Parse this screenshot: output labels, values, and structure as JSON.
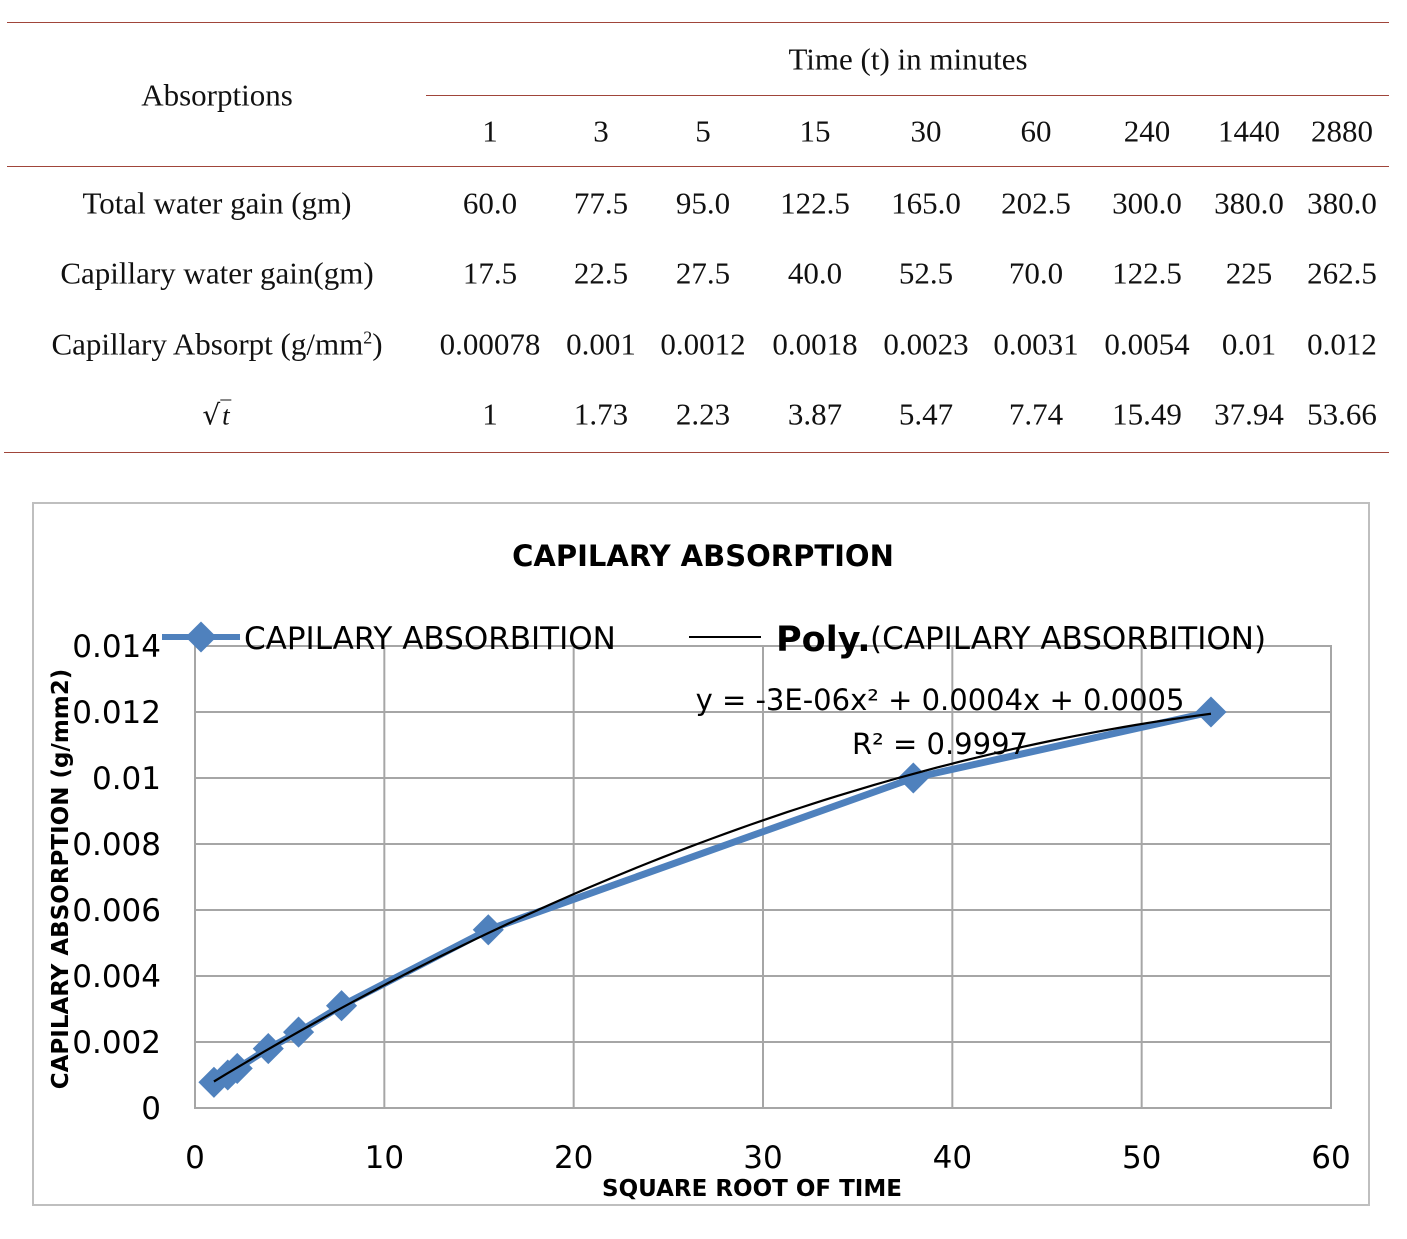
{
  "table": {
    "row_header_title": "Absorptions",
    "time_header": "Time (t) in minutes",
    "times": [
      "1",
      "3",
      "5",
      "15",
      "30",
      "60",
      "240",
      "1440",
      "2880"
    ],
    "rows": [
      {
        "label": "Total water gain (gm)",
        "values": [
          "60.0",
          "77.5",
          "95.0",
          "122.5",
          "165.0",
          "202.5",
          "300.0",
          "380.0",
          "380.0"
        ]
      },
      {
        "label": "Capillary water gain(gm)",
        "values": [
          "17.5",
          "22.5",
          "27.5",
          "40.0",
          "52.5",
          "70.0",
          "122.5",
          "225",
          "262.5"
        ]
      },
      {
        "label": "Capillary Absorpt (g/mm",
        "label_sup": "2",
        "label_tail": ")",
        "values": [
          "0.00078",
          "0.001",
          "0.0012",
          "0.0018",
          "0.0023",
          "0.0031",
          "0.0054",
          "0.01",
          "0.012"
        ]
      },
      {
        "label": "t",
        "is_sqrt": true,
        "values": [
          "1",
          "1.73",
          "2.23",
          "3.87",
          "5.47",
          "7.74",
          "15.49",
          "37.94",
          "53.66"
        ]
      }
    ],
    "rule_color": "#a0453a"
  },
  "chart_data": {
    "type": "scatter",
    "title": "CAPILARY ABSORPTION",
    "xlabel": "SQUARE ROOT OF TIME",
    "ylabel": "CAPILARY ABSORPTION (g/mm2)",
    "xlim": [
      0,
      60
    ],
    "ylim": [
      0,
      0.014
    ],
    "x_ticks": [
      0,
      10,
      20,
      30,
      40,
      50,
      60
    ],
    "x_tick_labels": [
      "0",
      "10",
      "20",
      "30",
      "40",
      "50",
      "60"
    ],
    "y_ticks": [
      0,
      0.002,
      0.004,
      0.006,
      0.008,
      0.01,
      0.012,
      0.014
    ],
    "y_tick_labels": [
      "0",
      "0.002",
      "0.004",
      "0.006",
      "0.008",
      "0.01",
      "0.012",
      "0.014"
    ],
    "grid": true,
    "series": [
      {
        "name": "CAPILARY ABSORBITION",
        "color": "#4f81bd",
        "marker": "diamond",
        "x": [
          1,
          1.73,
          2.23,
          3.87,
          5.47,
          7.74,
          15.49,
          37.94,
          53.66
        ],
        "y": [
          0.00078,
          0.001,
          0.0012,
          0.0018,
          0.0023,
          0.0031,
          0.0054,
          0.01,
          0.012
        ]
      }
    ],
    "trendline": {
      "legend_bold": "Poly.",
      "legend_rest": "(CAPILARY ABSORBITION)",
      "color": "#000000",
      "equation": "y = -3E-06x² + 0.0004x + 0.0005",
      "r_squared": "R² = 0.9997"
    },
    "legend_position": "top"
  }
}
